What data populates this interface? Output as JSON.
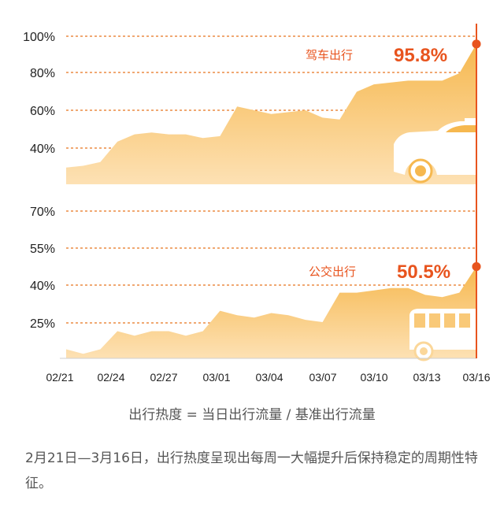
{
  "chart_data": [
    {
      "type": "area",
      "title": "",
      "xlabel": "",
      "ylabel": "",
      "series": [
        {
          "name": "驾车出行",
          "x": [
            "02/21",
            "02/22",
            "02/23",
            "02/24",
            "02/25",
            "02/26",
            "02/27",
            "02/28",
            "02/29",
            "03/01",
            "03/02",
            "03/03",
            "03/04",
            "03/05",
            "03/06",
            "03/07",
            "03/08",
            "03/09",
            "03/10",
            "03/11",
            "03/12",
            "03/13",
            "03/14",
            "03/15",
            "03/16"
          ],
          "values": [
            29,
            30,
            32,
            43,
            47,
            48,
            47,
            47,
            45,
            46,
            62,
            60,
            58,
            59,
            60,
            56,
            55,
            70,
            74,
            75,
            76,
            76,
            76,
            80,
            95.8
          ],
          "end_label": "95.8%"
        }
      ],
      "yticks": [
        "100%",
        "80%",
        "60%",
        "40%"
      ],
      "ylim": [
        20,
        100
      ],
      "grid": true,
      "colors": {
        "fill_top": "#f6b84f",
        "fill_bottom": "#fde1b4",
        "accent": "#e8541e",
        "grid": "#e8741e"
      },
      "icon": "car-icon"
    },
    {
      "type": "area",
      "title": "",
      "xlabel": "",
      "ylabel": "",
      "series": [
        {
          "name": "公交出行",
          "x": [
            "02/21",
            "02/22",
            "02/23",
            "02/24",
            "02/25",
            "02/26",
            "02/27",
            "02/28",
            "02/29",
            "03/01",
            "03/02",
            "03/03",
            "03/04",
            "03/05",
            "03/06",
            "03/07",
            "03/08",
            "03/09",
            "03/10",
            "03/11",
            "03/12",
            "03/13",
            "03/14",
            "03/15",
            "03/16"
          ],
          "values": [
            14,
            12,
            14,
            22,
            20,
            22,
            22,
            20,
            22,
            31,
            29,
            28,
            30,
            29,
            27,
            26,
            39,
            39,
            40,
            41,
            41,
            38,
            37,
            39,
            50.5
          ],
          "end_label": "50.5%"
        }
      ],
      "yticks": [
        "70%",
        "55%",
        "40%",
        "25%"
      ],
      "ylim": [
        10,
        75
      ],
      "grid": true,
      "colors": {
        "fill_top": "#f6b84f",
        "fill_bottom": "#fde1b4",
        "accent": "#e8541e",
        "grid": "#e8741e"
      },
      "icon": "bus-icon"
    }
  ],
  "x_tick_labels": [
    "02/21",
    "02/24",
    "02/27",
    "03/01",
    "03/04",
    "03/07",
    "03/10",
    "03/13",
    "03/16"
  ],
  "formula": "出行热度 = 当日出行流量 / 基准出行流量",
  "caption": "2月21日—3月16日，出行热度呈现出每周一大幅提升后保持稳定的周期性特征。"
}
